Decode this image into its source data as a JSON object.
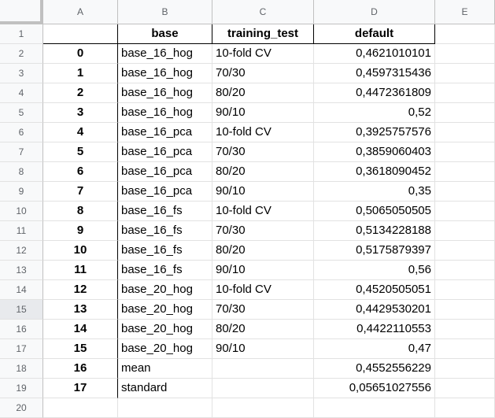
{
  "columns": [
    "A",
    "B",
    "C",
    "D",
    "E"
  ],
  "header_row": {
    "a": "",
    "b": "base",
    "c": "training_test",
    "d": "default"
  },
  "rows": [
    {
      "n": "2",
      "a": "0",
      "b": "base_16_hog",
      "c": "10-fold CV",
      "d": "0,4621010101"
    },
    {
      "n": "3",
      "a": "1",
      "b": "base_16_hog",
      "c": "70/30",
      "d": "0,4597315436"
    },
    {
      "n": "4",
      "a": "2",
      "b": "base_16_hog",
      "c": "80/20",
      "d": "0,4472361809"
    },
    {
      "n": "5",
      "a": "3",
      "b": "base_16_hog",
      "c": "90/10",
      "d": "0,52"
    },
    {
      "n": "6",
      "a": "4",
      "b": "base_16_pca",
      "c": "10-fold CV",
      "d": "0,3925757576"
    },
    {
      "n": "7",
      "a": "5",
      "b": "base_16_pca",
      "c": "70/30",
      "d": "0,3859060403"
    },
    {
      "n": "8",
      "a": "6",
      "b": "base_16_pca",
      "c": "80/20",
      "d": "0,3618090452"
    },
    {
      "n": "9",
      "a": "7",
      "b": "base_16_pca",
      "c": "90/10",
      "d": "0,35"
    },
    {
      "n": "10",
      "a": "8",
      "b": "base_16_fs",
      "c": "10-fold CV",
      "d": "0,5065050505"
    },
    {
      "n": "11",
      "a": "9",
      "b": "base_16_fs",
      "c": "70/30",
      "d": "0,5134228188"
    },
    {
      "n": "12",
      "a": "10",
      "b": "base_16_fs",
      "c": "80/20",
      "d": "0,5175879397"
    },
    {
      "n": "13",
      "a": "11",
      "b": "base_16_fs",
      "c": "90/10",
      "d": "0,56"
    },
    {
      "n": "14",
      "a": "12",
      "b": "base_20_hog",
      "c": "10-fold CV",
      "d": "0,4520505051"
    },
    {
      "n": "15",
      "a": "13",
      "b": "base_20_hog",
      "c": "70/30",
      "d": "0,4429530201"
    },
    {
      "n": "16",
      "a": "14",
      "b": "base_20_hog",
      "c": "80/20",
      "d": "0,4422110553"
    },
    {
      "n": "17",
      "a": "15",
      "b": "base_20_hog",
      "c": "90/10",
      "d": "0,47"
    },
    {
      "n": "18",
      "a": "16",
      "b": "mean",
      "c": "",
      "d": "0,4552556229"
    },
    {
      "n": "19",
      "a": "17",
      "b": "standard",
      "c": "",
      "d": "0,05651027556"
    },
    {
      "n": "20",
      "a": "",
      "b": "",
      "c": "",
      "d": ""
    }
  ],
  "selected_row": "15"
}
